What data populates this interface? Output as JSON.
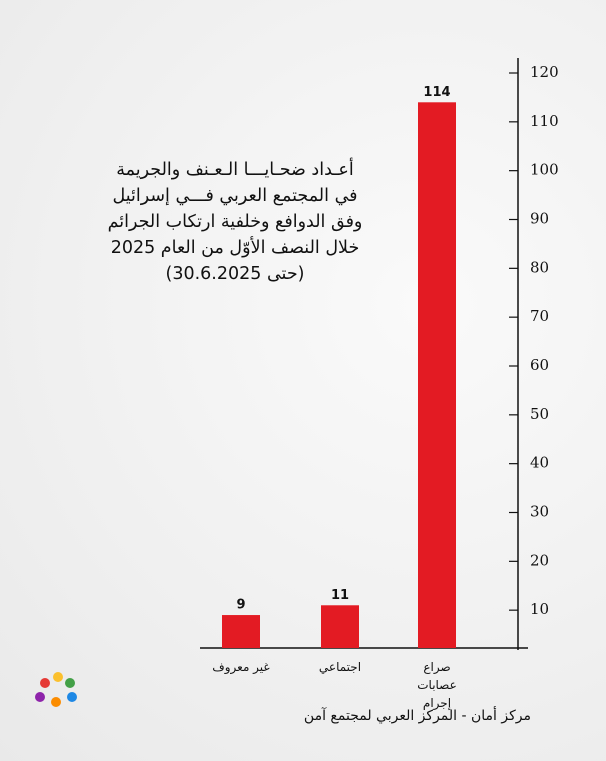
{
  "chart_data": {
    "type": "bar",
    "title": [
      "أعـداد ضحـايـــا الـعـنف والجريمة",
      "في المجتمع العربي فـــي إسرائيل",
      "وفق الدوافع وخلفية ارتكاب الجرائم",
      "خلال النصف الأوّل من العام 2025",
      "(حتى 30.6.2025)"
    ],
    "categories": [
      "غير معروف",
      "اجتماعي",
      "صراع عصابات إجرام"
    ],
    "values": [
      9,
      11,
      114
    ],
    "color": "#e31b23",
    "ylim": [
      0,
      120
    ],
    "yticks": [
      10,
      20,
      30,
      40,
      50,
      60,
      70,
      80,
      90,
      100,
      110,
      120
    ],
    "source": "مركز أمان  - المركز العربي لمجتمع آمن"
  }
}
